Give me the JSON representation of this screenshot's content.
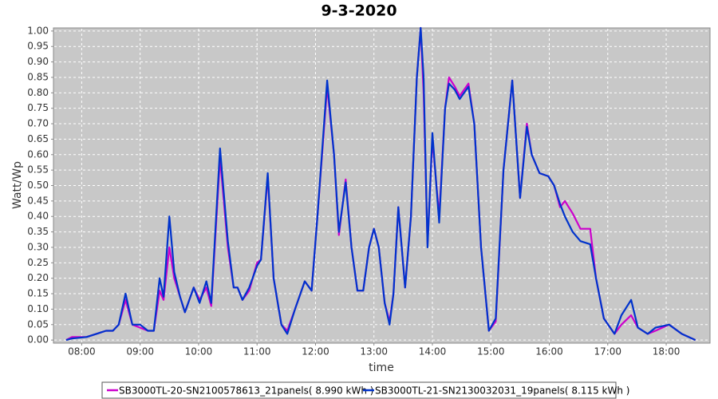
{
  "chart_data": {
    "type": "line",
    "title": "9-3-2020",
    "x_label": "time",
    "y_label": "Watt/Wp",
    "x": [
      "07:44",
      "07:50",
      "08:05",
      "08:15",
      "08:25",
      "08:32",
      "08:38",
      "08:45",
      "08:52",
      "09:00",
      "09:08",
      "09:14",
      "09:20",
      "09:24",
      "09:30",
      "09:35",
      "09:41",
      "09:46",
      "09:55",
      "10:01",
      "10:08",
      "10:13",
      "10:22",
      "10:30",
      "10:36",
      "10:40",
      "10:45",
      "10:52",
      "11:00",
      "11:04",
      "11:11",
      "11:17",
      "11:25",
      "11:31",
      "11:39",
      "11:49",
      "11:56",
      "12:02",
      "12:12",
      "12:19",
      "12:24",
      "12:31",
      "12:37",
      "12:43",
      "12:49",
      "12:55",
      "13:00",
      "13:05",
      "13:11",
      "13:16",
      "13:20",
      "13:25",
      "13:32",
      "13:38",
      "13:44",
      "13:48",
      "13:51",
      "13:55",
      "14:00",
      "14:07",
      "14:13",
      "14:17",
      "14:23",
      "14:28",
      "14:37",
      "14:43",
      "14:50",
      "14:58",
      "15:05",
      "15:13",
      "15:22",
      "15:30",
      "15:37",
      "15:42",
      "15:50",
      "15:59",
      "16:05",
      "16:11",
      "16:16",
      "16:24",
      "16:32",
      "16:42",
      "16:48",
      "16:56",
      "17:07",
      "17:14",
      "17:24",
      "17:31",
      "17:41",
      "17:49",
      "18:03",
      "18:16",
      "18:30"
    ],
    "series": [
      {
        "name": "SB3000TL-20-SN2100578613_21panels( 8.990 kWh )",
        "color": "#cc00cc",
        "values": [
          0,
          0.01,
          0.01,
          0.02,
          0.03,
          0.03,
          0.05,
          0.13,
          0.05,
          0.04,
          0.03,
          0.03,
          0.16,
          0.13,
          0.3,
          0.2,
          0.14,
          0.09,
          0.17,
          0.13,
          0.17,
          0.11,
          0.59,
          0.3,
          0.17,
          0.17,
          0.13,
          0.16,
          0.25,
          0.26,
          0.53,
          0.2,
          0.05,
          0.03,
          0.1,
          0.19,
          0.16,
          0.4,
          0.82,
          0.6,
          0.34,
          0.52,
          0.3,
          0.16,
          0.16,
          0.3,
          0.36,
          0.3,
          0.12,
          0.06,
          0.15,
          0.43,
          0.17,
          0.4,
          0.85,
          1.01,
          0.8,
          0.31,
          0.65,
          0.4,
          0.75,
          0.85,
          0.82,
          0.79,
          0.83,
          0.7,
          0.3,
          0.03,
          0.06,
          0.55,
          0.84,
          0.46,
          0.7,
          0.6,
          0.54,
          0.53,
          0.5,
          0.43,
          0.45,
          0.41,
          0.36,
          0.36,
          0.2,
          0.07,
          0.02,
          0.05,
          0.08,
          0.04,
          0.02,
          0.03,
          0.05,
          0.02,
          0
        ]
      },
      {
        "name": "SB3000TL-21-SN2130032031_19panels( 8.115 kWh )",
        "color": "#0033cc",
        "values": [
          0,
          0.005,
          0.01,
          0.02,
          0.03,
          0.03,
          0.05,
          0.15,
          0.05,
          0.05,
          0.03,
          0.03,
          0.2,
          0.14,
          0.4,
          0.22,
          0.14,
          0.09,
          0.17,
          0.12,
          0.19,
          0.12,
          0.62,
          0.32,
          0.17,
          0.17,
          0.13,
          0.17,
          0.24,
          0.26,
          0.54,
          0.2,
          0.05,
          0.02,
          0.1,
          0.19,
          0.16,
          0.4,
          0.84,
          0.6,
          0.35,
          0.51,
          0.3,
          0.16,
          0.16,
          0.3,
          0.36,
          0.3,
          0.12,
          0.05,
          0.15,
          0.43,
          0.17,
          0.4,
          0.85,
          1.01,
          0.85,
          0.3,
          0.67,
          0.38,
          0.75,
          0.83,
          0.81,
          0.78,
          0.82,
          0.7,
          0.3,
          0.03,
          0.07,
          0.55,
          0.84,
          0.46,
          0.69,
          0.6,
          0.54,
          0.53,
          0.5,
          0.44,
          0.4,
          0.35,
          0.32,
          0.31,
          0.2,
          0.07,
          0.02,
          0.08,
          0.13,
          0.04,
          0.02,
          0.04,
          0.05,
          0.02,
          0
        ]
      }
    ],
    "xlim": [
      "07:31",
      "18:45"
    ],
    "xticks": [
      "08:00",
      "09:00",
      "10:00",
      "11:00",
      "12:00",
      "13:00",
      "14:00",
      "15:00",
      "16:00",
      "17:00",
      "18:00"
    ],
    "ylim": [
      -0.01,
      1.01
    ],
    "yticks": [
      {
        "value": 0,
        "label": "0.00"
      },
      {
        "value": 0.05,
        "label": "0.05"
      },
      {
        "value": 0.1,
        "label": "0.10"
      },
      {
        "value": 0.15,
        "label": "0.15"
      },
      {
        "value": 0.2,
        "label": "0.20"
      },
      {
        "value": 0.25,
        "label": "0.25"
      },
      {
        "value": 0.3,
        "label": "0.30"
      },
      {
        "value": 0.35,
        "label": "0.35"
      },
      {
        "value": 0.4,
        "label": "0.40"
      },
      {
        "value": 0.45,
        "label": "0.45"
      },
      {
        "value": 0.5,
        "label": "0.50"
      },
      {
        "value": 0.55,
        "label": "0.55"
      },
      {
        "value": 0.6,
        "label": "0.60"
      },
      {
        "value": 0.65,
        "label": "0.65"
      },
      {
        "value": 0.7,
        "label": "0.70"
      },
      {
        "value": 0.75,
        "label": "0.75"
      },
      {
        "value": 0.8,
        "label": "0.80"
      },
      {
        "value": 0.85,
        "label": "0.85"
      },
      {
        "value": 0.9,
        "label": "0.90"
      },
      {
        "value": 0.95,
        "label": "0.95"
      },
      {
        "value": 1,
        "label": "1.00"
      }
    ],
    "grid": true,
    "legend": "bottom"
  }
}
